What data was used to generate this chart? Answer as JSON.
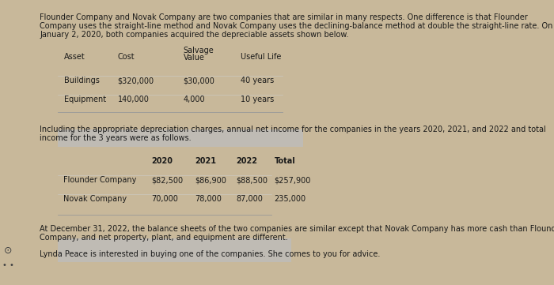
{
  "bg_color": "#c8b89a",
  "card_color": "#f2f0ec",
  "table1_header_color": "#bfbbb4",
  "table2_header_color": "#bfbbb4",
  "intro_text": "Flounder Company and Novak Company are two companies that are similar in many respects. One difference is that Flounder\nCompany uses the straight-line method and Novak Company uses the declining-balance method at double the straight-line rate. On\nJanuary 2, 2020, both companies acquired the depreciable assets shown below.",
  "table1_col_headers": [
    "Asset",
    "Cost",
    "Salvage\nValue",
    "Useful Life"
  ],
  "table1_rows": [
    [
      "Buildings",
      "$320,000",
      "$30,000",
      "40 years"
    ],
    [
      "Equipment",
      "140,000",
      "4,000",
      "10 years"
    ]
  ],
  "mid_text": "Including the appropriate depreciation charges, annual net income for the companies in the years 2020, 2021, and 2022 and total\nincome for the 3 years were as follows.",
  "table2_col_headers": [
    "",
    "2020",
    "2021",
    "2022",
    "Total"
  ],
  "table2_rows": [
    [
      "Flounder Company",
      "$82,500",
      "$86,900",
      "$88,500",
      "$257,900"
    ],
    [
      "Novak Company",
      "70,000",
      "78,000",
      "87,000",
      "235,000"
    ]
  ],
  "bottom_text1": "At December 31, 2022, the balance sheets of the two companies are similar except that Novak Company has more cash than Flounder\nCompany, and net property, plant, and equipment are different.",
  "bottom_text2": "Lynda Peace is interested in buying one of the companies. She comes to you for advice.",
  "fs_body": 7.0,
  "fs_table": 7.0,
  "text_color": "#1a1a1a"
}
